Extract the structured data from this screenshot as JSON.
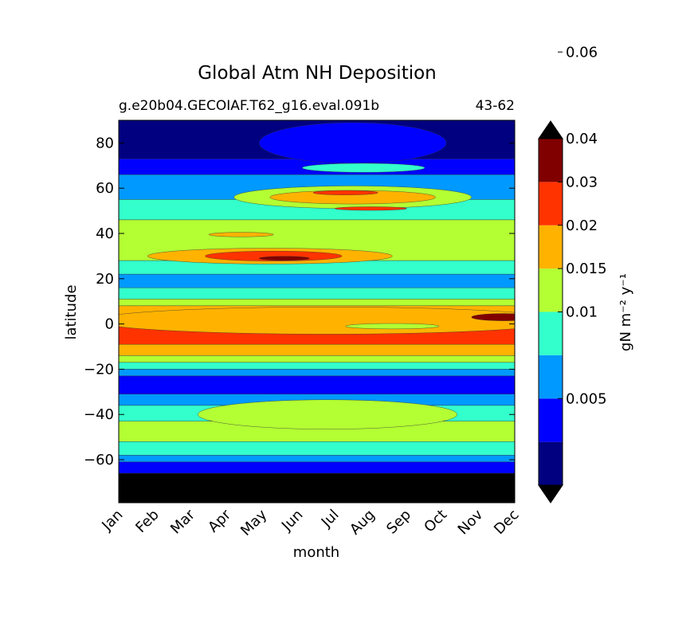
{
  "chart_data": {
    "type": "heatmap",
    "title": "Global Atm NH Deposition",
    "subtitle_left": "g.e20b04.GECOIAF.T62_g16.eval.091b",
    "subtitle_right": "43-62",
    "xlabel": "month",
    "ylabel": "latitude",
    "x_categories": [
      "Jan",
      "Feb",
      "Mar",
      "Apr",
      "May",
      "Jun",
      "Jul",
      "Aug",
      "Sep",
      "Oct",
      "Nov",
      "Dec"
    ],
    "xlim": [
      0,
      11
    ],
    "ylim": [
      -79,
      90
    ],
    "y_ticks": [
      80,
      60,
      40,
      20,
      0,
      -20,
      -40,
      -60
    ],
    "y_tick_labels": [
      "80",
      "60",
      "40",
      "20",
      "0",
      "−20",
      "−40",
      "−60"
    ],
    "colorbar": {
      "label": "gN m⁻² y⁻¹",
      "levels": [
        0,
        0.0025,
        0.005,
        0.0075,
        0.01,
        0.015,
        0.02,
        0.03,
        0.04,
        0.05,
        0.06,
        0.07
      ],
      "tick_values": [
        0.005,
        0.01,
        0.015,
        0.02,
        0.03,
        0.04,
        0.06
      ],
      "tick_labels": [
        "0.005",
        "0.01",
        "0.015",
        "0.02",
        "0.03",
        "0.04",
        "0.06"
      ],
      "colors": [
        "#000080",
        "#0000ff",
        "#0099ff",
        "#33ffcc",
        "#b3ff33",
        "#ffb300",
        "#ff3300",
        "#800000"
      ],
      "extend": "both",
      "under_color": "#000000",
      "over_color": "#000000"
    },
    "bands": [
      {
        "lat": [
          73,
          90
        ],
        "level": 0
      },
      {
        "lat": [
          66,
          73
        ],
        "level": 1
      },
      {
        "lat": [
          55,
          66
        ],
        "level": 2
      },
      {
        "lat": [
          46,
          55
        ],
        "level": 3
      },
      {
        "lat": [
          28,
          46
        ],
        "level": 4
      },
      {
        "lat": [
          22,
          28
        ],
        "level": 3
      },
      {
        "lat": [
          16,
          22
        ],
        "level": 2
      },
      {
        "lat": [
          11,
          16
        ],
        "level": 3
      },
      {
        "lat": [
          8,
          11
        ],
        "level": 4
      },
      {
        "lat": [
          4,
          8
        ],
        "level": 5
      },
      {
        "lat": [
          -9,
          4
        ],
        "level": 6
      },
      {
        "lat": [
          -14,
          -9
        ],
        "level": 5
      },
      {
        "lat": [
          -17,
          -14
        ],
        "level": 4
      },
      {
        "lat": [
          -20,
          -17
        ],
        "level": 3
      },
      {
        "lat": [
          -23,
          -20
        ],
        "level": 2
      },
      {
        "lat": [
          -31,
          -23
        ],
        "level": 1
      },
      {
        "lat": [
          -36,
          -31
        ],
        "level": 2
      },
      {
        "lat": [
          -43,
          -36
        ],
        "level": 3
      },
      {
        "lat": [
          -52,
          -43
        ],
        "level": 4
      },
      {
        "lat": [
          -58,
          -52
        ],
        "level": 3
      },
      {
        "lat": [
          -61,
          -58
        ],
        "level": 2
      },
      {
        "lat": [
          -66,
          -61
        ],
        "level": 1
      },
      {
        "lat": [
          -79,
          -66
        ],
        "level": -1
      }
    ],
    "blobs": [
      {
        "month": 6.5,
        "lat": 80,
        "rm": 2.6,
        "rl": 9,
        "level": 1
      },
      {
        "month": 6.8,
        "lat": 69,
        "rm": 1.7,
        "rl": 2,
        "level": 3
      },
      {
        "month": 6.5,
        "lat": 56,
        "rm": 3.3,
        "rl": 5,
        "level": 4
      },
      {
        "month": 6.5,
        "lat": 56,
        "rm": 2.3,
        "rl": 3,
        "level": 5
      },
      {
        "month": 6.3,
        "lat": 58,
        "rm": 0.9,
        "rl": 1,
        "level": 6
      },
      {
        "month": 7.0,
        "lat": 51,
        "rm": 1.0,
        "rl": 0.8,
        "level": 6
      },
      {
        "month": 3.4,
        "lat": 39.5,
        "rm": 0.9,
        "rl": 1,
        "level": 5
      },
      {
        "month": 4.2,
        "lat": 30,
        "rm": 3.4,
        "rl": 3.5,
        "level": 5
      },
      {
        "month": 4.3,
        "lat": 30,
        "rm": 1.9,
        "rl": 2.2,
        "level": 6
      },
      {
        "month": 4.6,
        "lat": 29,
        "rm": 0.7,
        "rl": 0.9,
        "level": 7
      },
      {
        "month": 5.8,
        "lat": 1.5,
        "rm": 6.5,
        "rl": 6,
        "level": 5
      },
      {
        "month": 7.6,
        "lat": -1,
        "rm": 1.3,
        "rl": 1.2,
        "level": 4
      },
      {
        "month": 10.7,
        "lat": 3,
        "rm": 0.9,
        "rl": 1.6,
        "level": 7
      },
      {
        "month": 5.8,
        "lat": -40,
        "rm": 3.6,
        "rl": 6.5,
        "level": 4
      }
    ]
  }
}
